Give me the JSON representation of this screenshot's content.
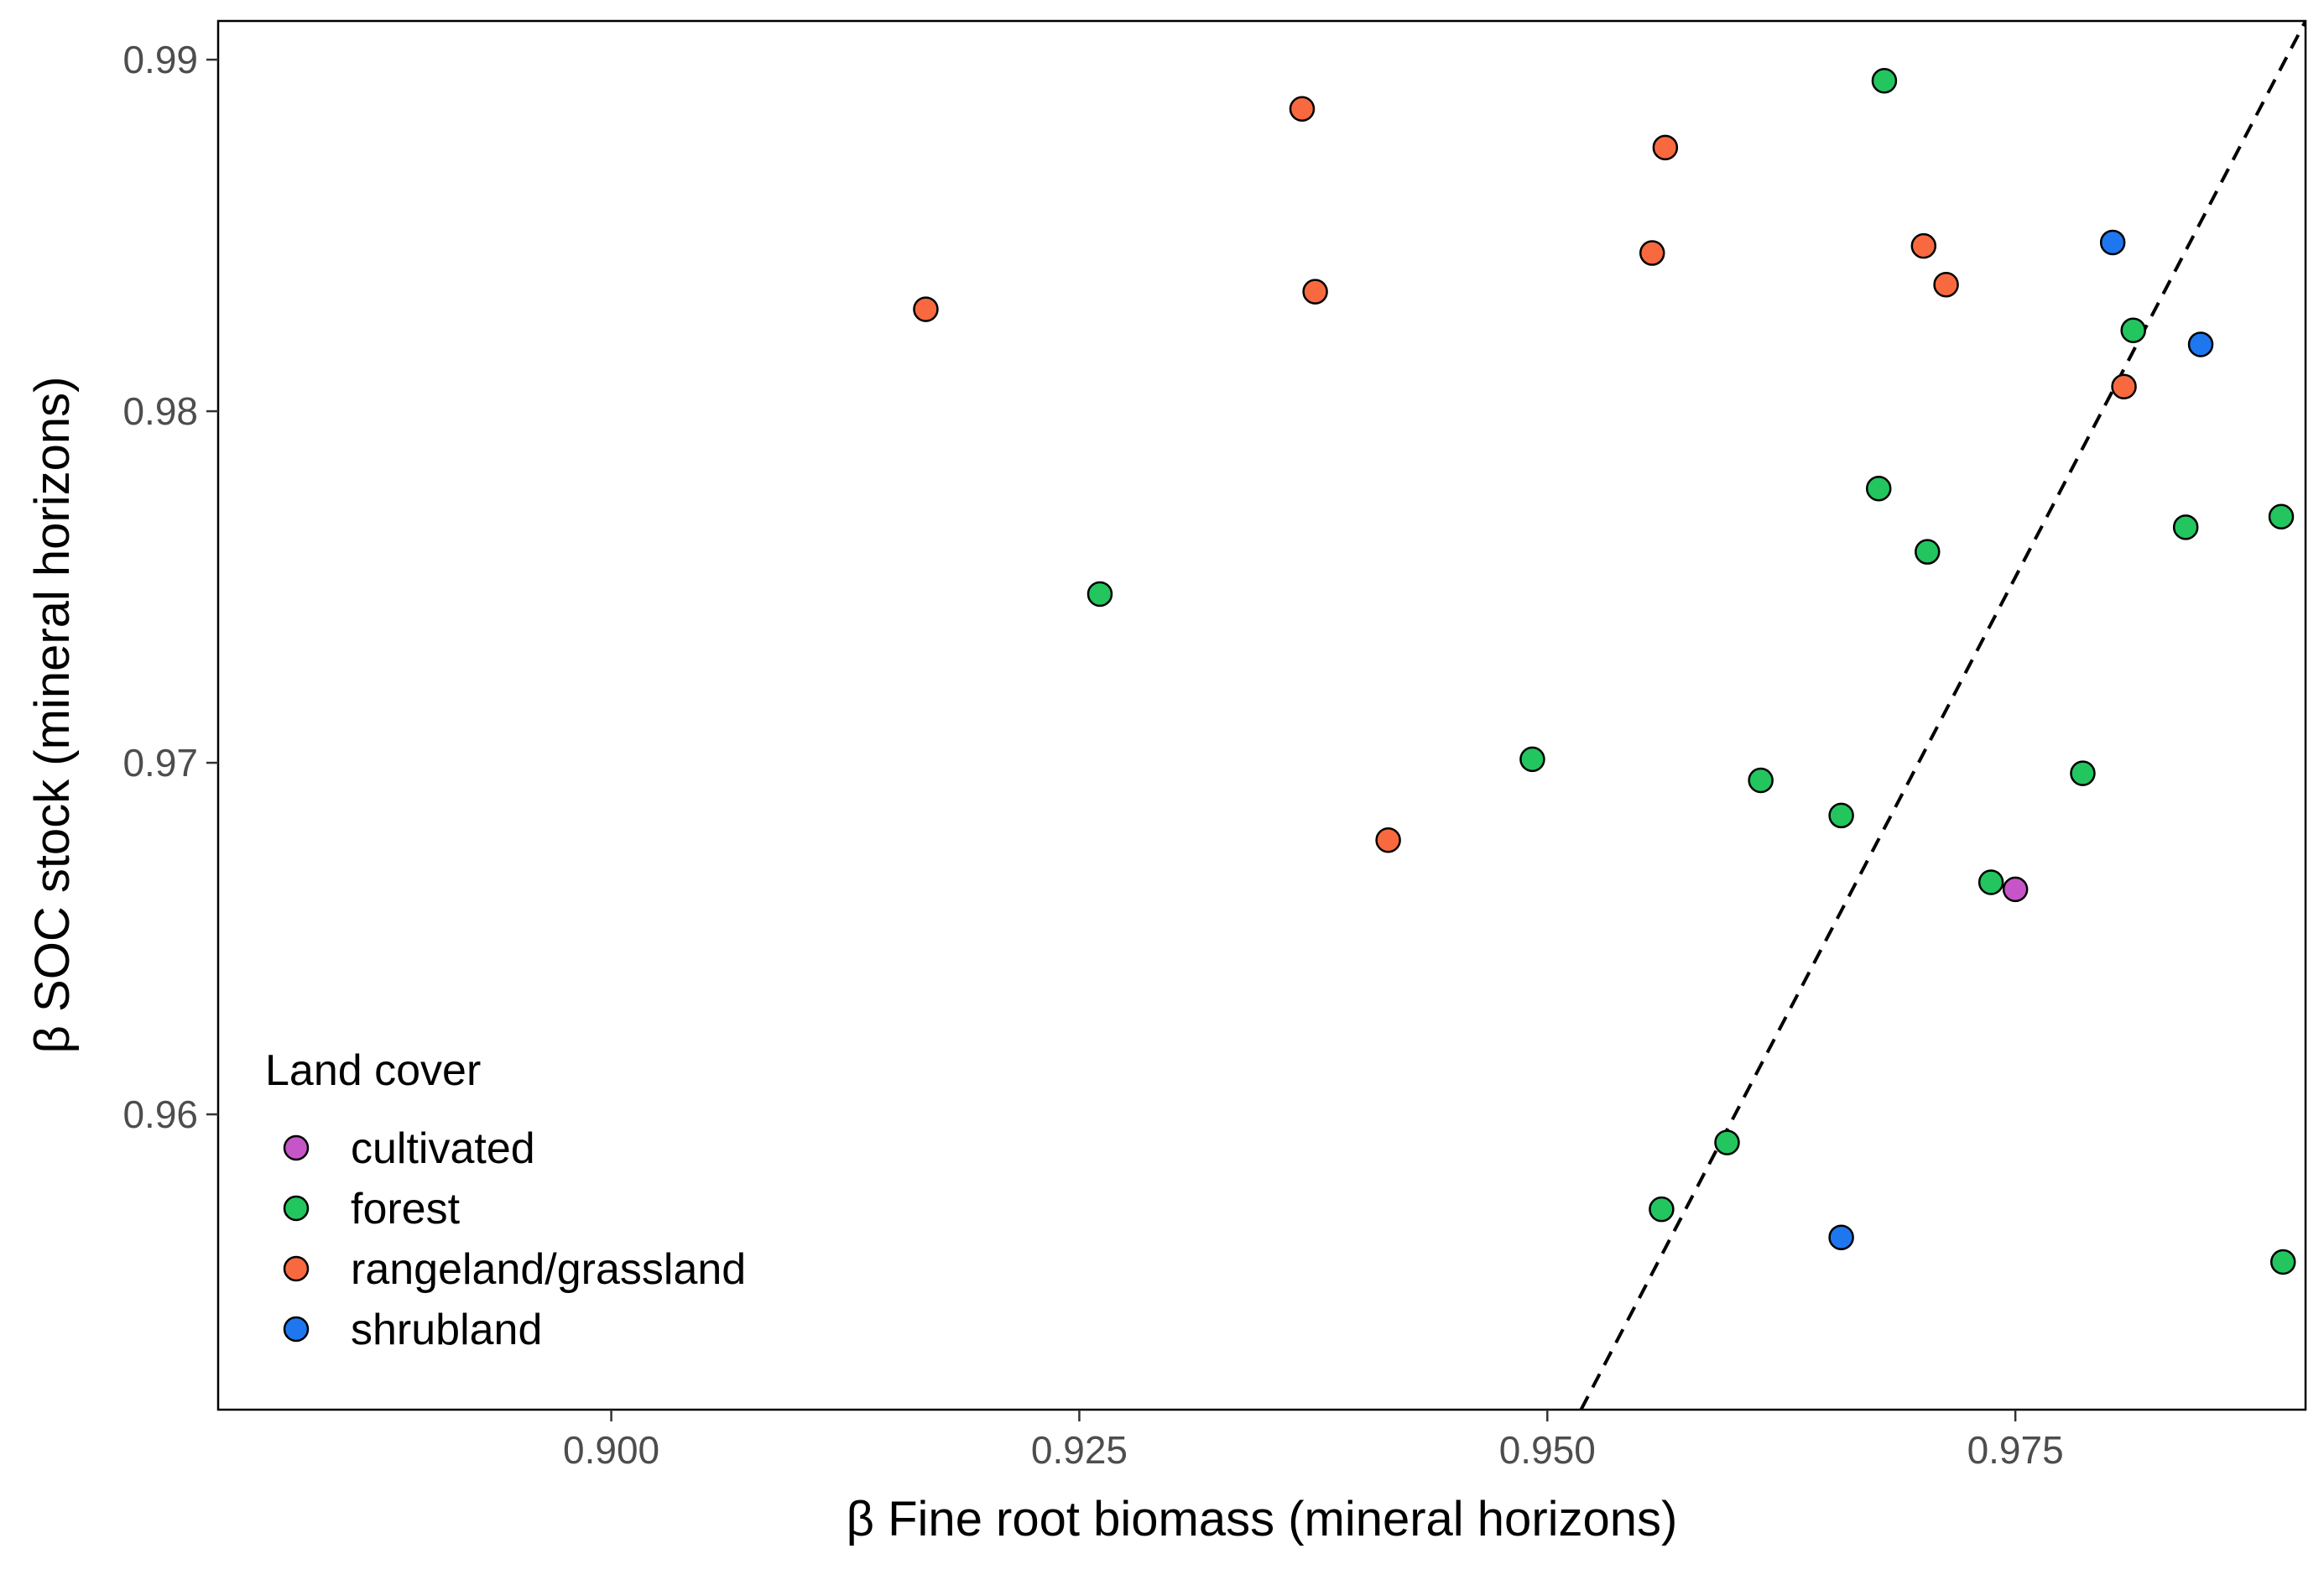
{
  "chart_data": {
    "type": "scatter",
    "xlabel": "β Fine root biomass (mineral horizons)",
    "ylabel": "β SOC stock (mineral horizons)",
    "xlim": [
      0.879,
      0.9905
    ],
    "ylim": [
      0.9516,
      0.9911
    ],
    "x_ticks": [
      0.9,
      0.925,
      0.95,
      0.975
    ],
    "x_tick_labels": [
      "0.900",
      "0.925",
      "0.950",
      "0.975"
    ],
    "y_ticks": [
      0.96,
      0.97,
      0.98,
      0.99
    ],
    "y_tick_labels": [
      "0.96",
      "0.97",
      "0.98",
      "0.99"
    ],
    "grid": false,
    "reference_line": {
      "style": "dashed",
      "color": "#000000",
      "points": [
        [
          0.9518,
          0.9516
        ],
        [
          0.9905,
          0.9911
        ]
      ]
    },
    "legend": {
      "title": "Land cover",
      "position": "bottom-left",
      "entries": [
        "cultivated",
        "forest",
        "rangeland/grassland",
        "shrubland"
      ]
    },
    "series": [
      {
        "name": "cultivated",
        "color": "#C655C8",
        "points": [
          [
            0.975,
            0.9664
          ]
        ]
      },
      {
        "name": "forest",
        "color": "#22C55E",
        "points": [
          [
            0.968,
            0.9894
          ],
          [
            0.9813,
            0.9823
          ],
          [
            0.9677,
            0.9778
          ],
          [
            0.9841,
            0.9767
          ],
          [
            0.9892,
            0.977
          ],
          [
            0.9703,
            0.976
          ],
          [
            0.9261,
            0.9748
          ],
          [
            0.9492,
            0.9701
          ],
          [
            0.9614,
            0.9695
          ],
          [
            0.9786,
            0.9697
          ],
          [
            0.9657,
            0.9685
          ],
          [
            0.9737,
            0.9666
          ],
          [
            0.9596,
            0.9592
          ],
          [
            0.9561,
            0.9573
          ],
          [
            0.9893,
            0.9558
          ]
        ]
      },
      {
        "name": "rangeland/grassland",
        "color": "#F8693F",
        "points": [
          [
            0.9369,
            0.9886
          ],
          [
            0.9563,
            0.9875
          ],
          [
            0.9556,
            0.9845
          ],
          [
            0.9701,
            0.9847
          ],
          [
            0.9713,
            0.9836
          ],
          [
            0.9376,
            0.9834
          ],
          [
            0.9168,
            0.9829
          ],
          [
            0.9808,
            0.9807
          ],
          [
            0.9415,
            0.9678
          ]
        ]
      },
      {
        "name": "shrubland",
        "color": "#1F77F0",
        "points": [
          [
            0.9802,
            0.9848
          ],
          [
            0.9849,
            0.9819
          ],
          [
            0.9657,
            0.9565
          ]
        ]
      }
    ]
  }
}
